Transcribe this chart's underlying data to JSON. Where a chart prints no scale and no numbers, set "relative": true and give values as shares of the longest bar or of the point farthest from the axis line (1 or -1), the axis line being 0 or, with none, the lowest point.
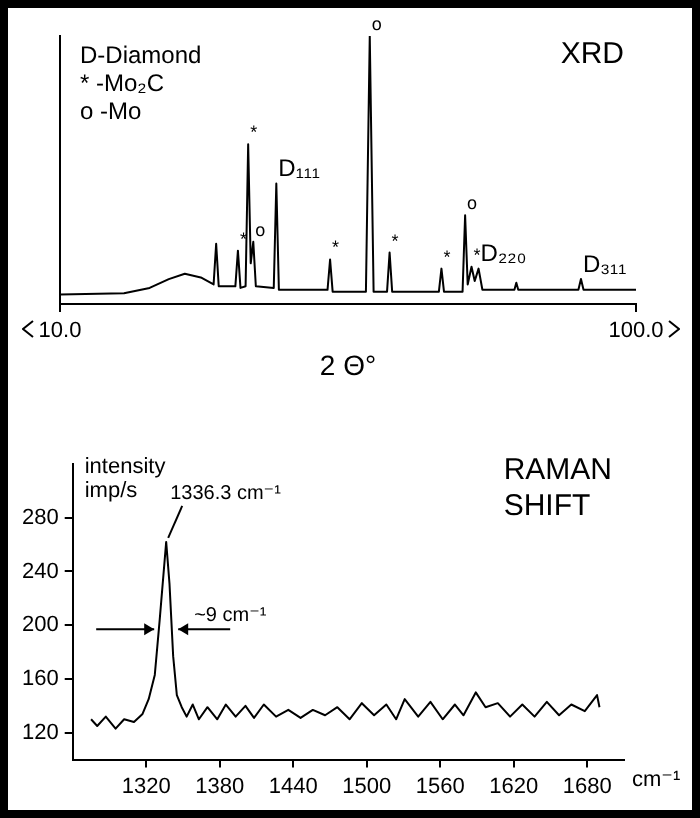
{
  "chart_data": [
    {
      "type": "line",
      "title": "XRD",
      "xlabel": "2 Θ°",
      "relative": true,
      "xlim": [
        10,
        100
      ],
      "xticks": [
        {
          "value": 10,
          "label": "10.0"
        },
        {
          "value": 100,
          "label": "100.0"
        }
      ],
      "grid": false,
      "legend": false,
      "marker": "none",
      "x": [
        10,
        20,
        24,
        27,
        29.5,
        32,
        34,
        34.4,
        34.8,
        37.4,
        37.8,
        38.2,
        39,
        39.4,
        39.8,
        40.2,
        40.6,
        43.4,
        43.8,
        44.2,
        51.8,
        52.2,
        52.6,
        57.8,
        58.4,
        59,
        61.1,
        61.5,
        61.9,
        69.2,
        69.6,
        70,
        72.9,
        73.3,
        73.7,
        74.3,
        74.8,
        75.4,
        76,
        81,
        81.3,
        81.6,
        91,
        91.4,
        91.8,
        100
      ],
      "series": [
        {
          "color": "#000000",
          "values": [
            0.035,
            0.04,
            0.06,
            0.093,
            0.113,
            0.099,
            0.073,
            0.225,
            0.066,
            0.066,
            0.199,
            0.06,
            0.066,
            0.596,
            0.152,
            0.232,
            0.066,
            0.06,
            0.45,
            0.053,
            0.053,
            0.166,
            0.046,
            0.046,
            1.0,
            0.046,
            0.046,
            0.192,
            0.046,
            0.046,
            0.132,
            0.046,
            0.046,
            0.331,
            0.073,
            0.139,
            0.086,
            0.132,
            0.053,
            0.053,
            0.079,
            0.053,
            0.053,
            0.093,
            0.053,
            0.053
          ]
        }
      ],
      "annotations": [
        "D-Diamond",
        "* -Mo₂C",
        "o -Mo",
        {
          "text": "*",
          "x": 37.8,
          "y": 0.199
        },
        {
          "text": "*",
          "x": 39.4,
          "y": 0.596
        },
        {
          "text": "o",
          "x": 40.2,
          "y": 0.232
        },
        {
          "text": "D₁₁₁",
          "x": 43.8,
          "y": 0.45
        },
        {
          "text": "*",
          "x": 52.2,
          "y": 0.166
        },
        {
          "text": "o",
          "x": 58.4,
          "y": 1.0
        },
        {
          "text": "*",
          "x": 61.5,
          "y": 0.192
        },
        {
          "text": "*",
          "x": 69.6,
          "y": 0.132
        },
        {
          "text": "o",
          "x": 73.3,
          "y": 0.331
        },
        {
          "text": "*",
          "x": 74.3,
          "y": 0.139
        },
        {
          "text": "D₂₂₀",
          "x": 75.4,
          "y": 0.132
        },
        {
          "text": "D₃₁₁",
          "x": 91.4,
          "y": 0.093
        }
      ]
    },
    {
      "type": "line",
      "title": "RAMAN SHIFT",
      "xlabel": "cm⁻¹",
      "ylabel": "intensity imp/s",
      "xlim": [
        1260,
        1710
      ],
      "xticks": [
        1320,
        1380,
        1440,
        1500,
        1560,
        1620,
        1680
      ],
      "ylim": [
        100,
        320
      ],
      "yticks": [
        120,
        160,
        200,
        240,
        280
      ],
      "grid": false,
      "legend": false,
      "marker": "none",
      "x": [
        1275,
        1280,
        1287,
        1295,
        1302,
        1310,
        1317,
        1322,
        1327,
        1331,
        1336.3,
        1339,
        1342,
        1345,
        1349,
        1353,
        1358,
        1363,
        1370,
        1378,
        1385,
        1393,
        1401,
        1408,
        1416,
        1426,
        1436,
        1446,
        1456,
        1466,
        1476,
        1486,
        1496,
        1506,
        1516,
        1524,
        1531,
        1542,
        1552,
        1562,
        1572,
        1579,
        1589,
        1597,
        1607,
        1617,
        1627,
        1637,
        1647,
        1657,
        1667,
        1678,
        1688,
        1690
      ],
      "series": [
        {
          "color": "#000000",
          "values": [
            130,
            125,
            132,
            123,
            130,
            128,
            134,
            145,
            163,
            204,
            262,
            231,
            177,
            148,
            139,
            132,
            141,
            130,
            139,
            130,
            141,
            132,
            140,
            131,
            141,
            132,
            137,
            131,
            137,
            133,
            139,
            130,
            142,
            133,
            141,
            130,
            145,
            132,
            143,
            130,
            141,
            133,
            150,
            139,
            142,
            132,
            141,
            132,
            143,
            133,
            141,
            136,
            148,
            139
          ]
        }
      ],
      "annotations": [
        {
          "text": "1336.3 cm⁻¹",
          "x": 1336.3,
          "y": 262
        },
        {
          "text": "~9 cm⁻¹",
          "x": 1336.3,
          "y": 197
        }
      ]
    }
  ]
}
